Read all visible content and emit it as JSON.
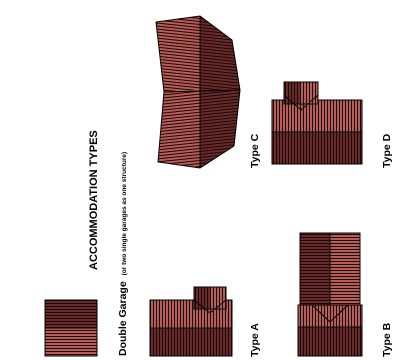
{
  "title": "ACCOMMODATION TYPES",
  "labels": {
    "double_garage": "Double Garage",
    "double_garage_note": "(or two single garages as one structure)",
    "type_a": "Type A",
    "type_b": "Type B",
    "type_c": "Type C",
    "type_d": "Type D"
  },
  "colors": {
    "roof_light": "#b85c56",
    "roof_dark": "#6a2a2a",
    "stripe": "#1a0808",
    "outline": "#000000"
  }
}
